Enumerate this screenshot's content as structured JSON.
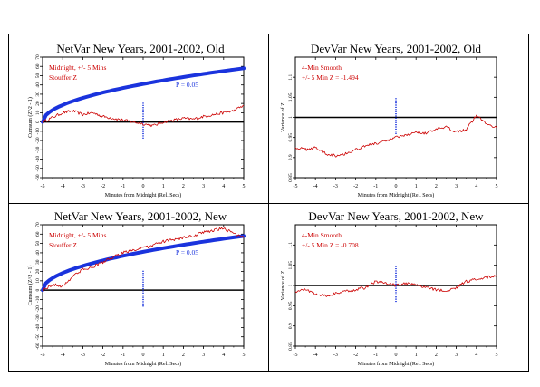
{
  "chart_data": [
    {
      "type": "line",
      "title": "NetVar New Years, 2001-2002, Old",
      "xlabel": "Minutes from Midnight (Rel. Secs)",
      "ylabel": "Cumsum (Z^2 - 1)",
      "xlim": [
        -5,
        5
      ],
      "ylim": [
        -60,
        70
      ],
      "xticks": [
        -5,
        -4,
        -3,
        -2,
        -1,
        0,
        1,
        2,
        3,
        4,
        5
      ],
      "yticks": [
        -60,
        -50,
        -40,
        -30,
        -20,
        -10,
        0,
        10,
        20,
        30,
        40,
        50,
        60,
        70
      ],
      "ytick_labels": [
        "-60",
        "-50",
        "-40",
        "-30",
        "-20",
        "-10",
        "0",
        "10",
        "20",
        "30",
        "40",
        "50",
        "60",
        "70"
      ],
      "annotations": [
        "Midnight, +/- 5 Mins",
        "Stouffer Z"
      ],
      "envelope_label": "P = 0.05",
      "colors": {
        "data": "#cc0000",
        "envelope": "#1a33dd",
        "marker": "#1a33dd",
        "baseline": "#000000"
      },
      "series": [
        {
          "x": [
            -5,
            -4.5,
            -4,
            -3.5,
            -3,
            -2.5,
            -2,
            -1.5,
            -1,
            -0.5,
            0,
            0.5,
            1,
            1.5,
            2,
            2.5,
            3,
            3.5,
            4,
            4.5,
            5
          ],
          "y": [
            0,
            5,
            10,
            12,
            8,
            10,
            6,
            4,
            2,
            0,
            -2,
            -4,
            0,
            2,
            4,
            3,
            6,
            8,
            10,
            12,
            18
          ]
        }
      ],
      "envelope": {
        "x0": -5,
        "x1": 5,
        "y_end": 58
      }
    },
    {
      "type": "line",
      "title": "DevVar New Years, 2001-2002, Old",
      "xlabel": "Minutes from Midnight (Rel. Secs)",
      "ylabel": "Variance of Z",
      "xlim": [
        -5,
        5
      ],
      "ylim": [
        0.85,
        1.15
      ],
      "xticks": [
        -5,
        -4,
        -3,
        -2,
        -1,
        0,
        1,
        2,
        3,
        4,
        5
      ],
      "yticks": [
        0.85,
        0.9,
        0.95,
        1.0,
        1.05,
        1.1
      ],
      "ytick_labels": [
        "0.85",
        "0.9",
        "0.95",
        "1",
        "1.05",
        "1.1"
      ],
      "annotations": [
        "4-Min Smooth",
        "+/- 5 Min Z = -1.494"
      ],
      "colors": {
        "data": "#cc0000",
        "marker": "#1a33dd",
        "baseline": "#000000"
      },
      "series": [
        {
          "x": [
            -5,
            -4.5,
            -4,
            -3.5,
            -3,
            -2.5,
            -2,
            -1.5,
            -1,
            -0.5,
            0,
            0.5,
            1,
            1.5,
            2,
            2.5,
            3,
            3.5,
            4,
            4.5,
            5
          ],
          "y": [
            0.925,
            0.92,
            0.925,
            0.91,
            0.905,
            0.91,
            0.92,
            0.93,
            0.935,
            0.94,
            0.95,
            0.955,
            0.965,
            0.96,
            0.97,
            0.975,
            0.965,
            0.97,
            1.005,
            0.985,
            0.975
          ]
        }
      ]
    },
    {
      "type": "line",
      "title": "NetVar New Years, 2001-2002, New",
      "xlabel": "Minutes from Midnight (Rel. Secs)",
      "ylabel": "Cumsum (Z^2 - 1)",
      "xlim": [
        -5,
        5
      ],
      "ylim": [
        -60,
        70
      ],
      "xticks": [
        -5,
        -4,
        -3,
        -2,
        -1,
        0,
        1,
        2,
        3,
        4,
        5
      ],
      "yticks": [
        -60,
        -50,
        -40,
        -30,
        -20,
        -10,
        0,
        10,
        20,
        30,
        40,
        50,
        60,
        70
      ],
      "ytick_labels": [
        "-60",
        "-50",
        "-40",
        "-30",
        "-20",
        "-10",
        "0",
        "10",
        "20",
        "30",
        "40",
        "50",
        "60",
        "70"
      ],
      "annotations": [
        "Midnight, +/- 5 Mins",
        "Stouffer Z"
      ],
      "envelope_label": "P = 0.05",
      "colors": {
        "data": "#cc0000",
        "envelope": "#1a33dd",
        "marker": "#1a33dd",
        "baseline": "#000000"
      },
      "series": [
        {
          "x": [
            -5,
            -4.5,
            -4,
            -3.5,
            -3,
            -2.5,
            -2,
            -1.5,
            -1,
            -0.5,
            0,
            0.5,
            1,
            1.5,
            2,
            2.5,
            3,
            3.5,
            4,
            4.5,
            5
          ],
          "y": [
            0,
            6,
            4,
            15,
            22,
            25,
            30,
            35,
            40,
            43,
            45,
            48,
            52,
            54,
            56,
            58,
            62,
            64,
            66,
            61,
            56
          ]
        }
      ],
      "envelope": {
        "x0": -5,
        "x1": 5,
        "y_end": 58
      }
    },
    {
      "type": "line",
      "title": "DevVar New Years, 2001-2002, New",
      "xlabel": "Minutes from Midnight (Rel. Secs)",
      "ylabel": "Variance of Z",
      "xlim": [
        -5,
        5
      ],
      "ylim": [
        0.85,
        1.15
      ],
      "xticks": [
        -5,
        -4,
        -3,
        -2,
        -1,
        0,
        1,
        2,
        3,
        4,
        5
      ],
      "yticks": [
        0.85,
        0.9,
        0.95,
        1.0,
        1.05,
        1.1
      ],
      "ytick_labels": [
        "0.85",
        "0.9",
        "0.95",
        "1",
        "1.05",
        "1.1"
      ],
      "annotations": [
        "4-Min Smooth",
        "+/- 5 Min Z = -0.708"
      ],
      "colors": {
        "data": "#cc0000",
        "marker": "#1a33dd",
        "baseline": "#000000"
      },
      "series": [
        {
          "x": [
            -5,
            -4.5,
            -4,
            -3.5,
            -3,
            -2.5,
            -2,
            -1.5,
            -1,
            -0.5,
            0,
            0.5,
            1,
            1.5,
            2,
            2.5,
            3,
            3.5,
            4,
            4.5,
            5
          ],
          "y": [
            0.985,
            0.99,
            0.98,
            0.975,
            0.98,
            0.985,
            0.99,
            0.995,
            1.01,
            1.005,
            1.0,
            1.005,
            1.0,
            0.995,
            0.99,
            0.985,
            0.995,
            1.01,
            1.015,
            1.02,
            1.025
          ]
        }
      ]
    }
  ]
}
